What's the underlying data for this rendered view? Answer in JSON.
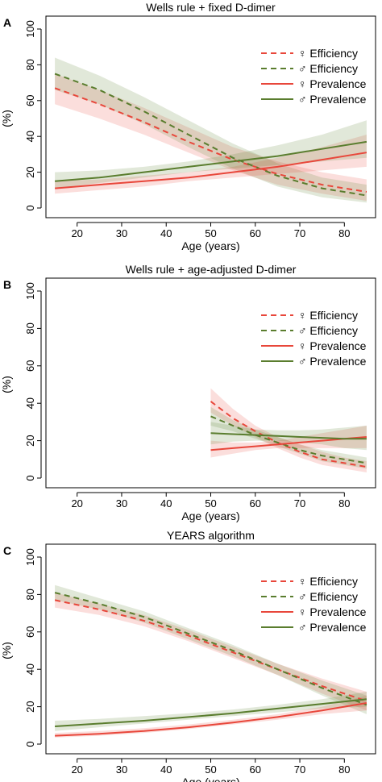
{
  "chart_data": [
    {
      "panel_label": "A",
      "type": "line",
      "title": "Wells rule + fixed D-dimer",
      "xlabel": "Age (years)",
      "ylabel": "(%)",
      "xlim": [
        13,
        87
      ],
      "ylim": [
        0,
        100
      ],
      "xticks": [
        20,
        30,
        40,
        50,
        60,
        70,
        80
      ],
      "yticks": [
        0,
        20,
        40,
        60,
        80,
        100
      ],
      "grid": false,
      "legend_position": "top-right",
      "x": [
        15,
        25,
        35,
        45,
        55,
        65,
        75,
        85
      ],
      "series": [
        {
          "name": "♀ Efficiency",
          "color": "#e8473b",
          "dash": true,
          "values": [
            67,
            58,
            48,
            37,
            27,
            19,
            13,
            9
          ],
          "lower": [
            58,
            50,
            41,
            31,
            21,
            13,
            8,
            4
          ],
          "upper": [
            75,
            66,
            56,
            45,
            34,
            26,
            20,
            16
          ]
        },
        {
          "name": "♂ Efficiency",
          "color": "#5a7d2e",
          "dash": true,
          "values": [
            75,
            66,
            54,
            41,
            28,
            18,
            11,
            7
          ],
          "lower": [
            66,
            58,
            47,
            34,
            22,
            12,
            6,
            3
          ],
          "upper": [
            84,
            74,
            62,
            49,
            36,
            25,
            17,
            13
          ]
        },
        {
          "name": "♀ Prevalence",
          "color": "#e8473b",
          "dash": false,
          "values": [
            11,
            13,
            15,
            17,
            20,
            23,
            27,
            31
          ],
          "lower": [
            8,
            10,
            12,
            15,
            17,
            19,
            21,
            23
          ],
          "upper": [
            15,
            16,
            18,
            20,
            23,
            28,
            34,
            41
          ]
        },
        {
          "name": "♂ Prevalence",
          "color": "#5a7d2e",
          "dash": false,
          "values": [
            15,
            17,
            20,
            23,
            26,
            29,
            33,
            37
          ],
          "lower": [
            11,
            14,
            17,
            20,
            22,
            24,
            26,
            28
          ],
          "upper": [
            20,
            21,
            23,
            26,
            30,
            35,
            41,
            49
          ]
        }
      ]
    },
    {
      "panel_label": "B",
      "type": "line",
      "title": "Wells rule + age-adjusted D-dimer",
      "xlabel": "Age (years)",
      "ylabel": "(%)",
      "xlim": [
        13,
        87
      ],
      "ylim": [
        0,
        100
      ],
      "xticks": [
        20,
        30,
        40,
        50,
        60,
        70,
        80
      ],
      "yticks": [
        0,
        20,
        40,
        60,
        80,
        100
      ],
      "grid": false,
      "legend_position": "top-right",
      "x": [
        50,
        55,
        60,
        65,
        70,
        75,
        80,
        85
      ],
      "series": [
        {
          "name": "♀ Efficiency",
          "color": "#e8473b",
          "dash": true,
          "values": [
            41,
            32,
            25,
            19,
            14,
            10,
            8,
            6
          ],
          "lower": [
            35,
            28,
            22,
            16,
            11,
            7,
            5,
            3
          ],
          "upper": [
            48,
            37,
            28,
            22,
            18,
            14,
            11,
            9
          ]
        },
        {
          "name": "♂ Efficiency",
          "color": "#5a7d2e",
          "dash": true,
          "values": [
            33,
            28,
            23,
            19,
            15,
            12,
            10,
            8
          ],
          "lower": [
            28,
            25,
            21,
            17,
            13,
            9,
            7,
            5
          ],
          "upper": [
            38,
            31,
            26,
            22,
            18,
            15,
            13,
            11
          ]
        },
        {
          "name": "♀ Prevalence",
          "color": "#e8473b",
          "dash": false,
          "values": [
            15,
            16,
            17,
            18,
            19,
            20,
            21,
            22
          ],
          "lower": [
            11,
            13,
            15,
            16,
            16,
            16,
            16,
            16
          ],
          "upper": [
            20,
            19,
            19,
            20,
            22,
            24,
            26,
            28
          ]
        },
        {
          "name": "♂ Prevalence",
          "color": "#5a7d2e",
          "dash": false,
          "values": [
            24,
            23.5,
            23,
            22.5,
            22,
            21.5,
            21,
            21
          ],
          "lower": [
            18,
            19.5,
            20,
            20,
            19,
            18,
            16,
            15
          ],
          "upper": [
            30,
            28,
            26,
            25.5,
            25.5,
            26,
            27,
            28
          ]
        }
      ]
    },
    {
      "panel_label": "C",
      "type": "line",
      "title": "YEARS algorithm",
      "xlabel": "Age (years)",
      "ylabel": "(%)",
      "xlim": [
        13,
        87
      ],
      "ylim": [
        0,
        100
      ],
      "xticks": [
        20,
        30,
        40,
        50,
        60,
        70,
        80
      ],
      "yticks": [
        0,
        20,
        40,
        60,
        80,
        100
      ],
      "grid": false,
      "legend_position": "top-right",
      "x": [
        15,
        25,
        35,
        45,
        55,
        65,
        75,
        85
      ],
      "series": [
        {
          "name": "♀ Efficiency",
          "color": "#e8473b",
          "dash": true,
          "values": [
            77,
            72,
            66,
            58,
            49,
            40,
            31,
            23
          ],
          "lower": [
            73,
            69,
            63,
            55,
            46,
            37,
            27,
            18
          ],
          "upper": [
            81,
            75,
            69,
            61,
            52,
            43,
            35,
            28
          ]
        },
        {
          "name": "♂ Efficiency",
          "color": "#5a7d2e",
          "dash": true,
          "values": [
            81,
            75,
            68,
            59,
            50,
            40,
            30,
            21
          ],
          "lower": [
            77,
            72,
            65,
            56,
            47,
            37,
            26,
            16
          ],
          "upper": [
            85,
            78,
            71,
            62,
            53,
            43,
            34,
            26
          ]
        },
        {
          "name": "♀ Prevalence",
          "color": "#e8473b",
          "dash": false,
          "values": [
            4.5,
            5.5,
            7,
            9,
            11.5,
            14.5,
            18,
            22
          ],
          "lower": [
            3.5,
            4.5,
            6,
            8,
            10.5,
            13,
            16,
            18
          ],
          "upper": [
            6,
            7,
            8.5,
            10.5,
            13,
            16,
            20,
            26
          ]
        },
        {
          "name": "♂ Prevalence",
          "color": "#5a7d2e",
          "dash": false,
          "values": [
            9.5,
            11,
            12.5,
            14.5,
            16.5,
            19,
            21.5,
            24
          ],
          "lower": [
            7,
            9,
            11,
            13,
            15,
            17,
            19,
            20
          ],
          "upper": [
            12.5,
            13.5,
            15,
            16.5,
            18.5,
            21,
            24,
            28
          ]
        }
      ]
    }
  ]
}
